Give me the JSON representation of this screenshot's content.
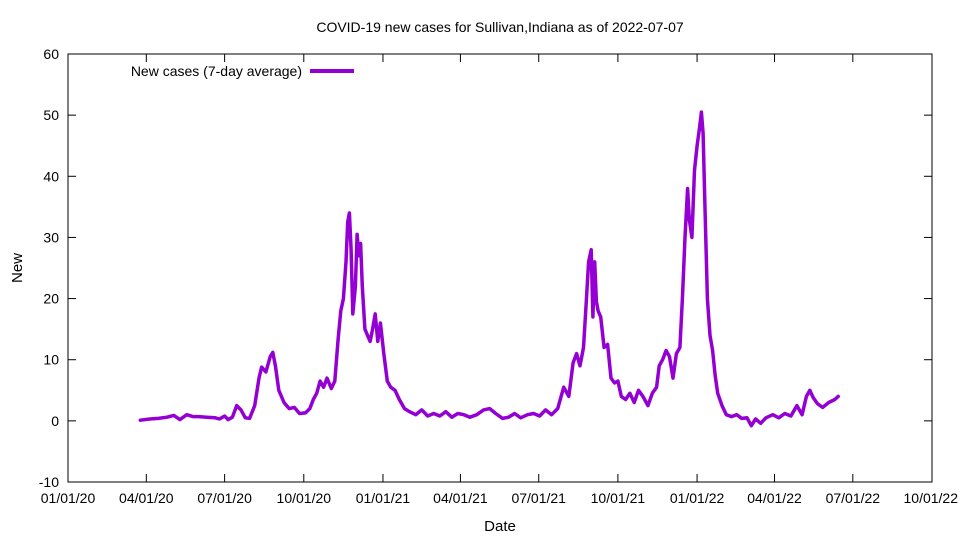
{
  "chart_data": {
    "type": "line",
    "title": "COVID-19 new cases for Sullivan,Indiana as of 2022-07-07",
    "xlabel": "Date",
    "ylabel": "New",
    "ylim": [
      -10,
      60
    ],
    "xlim": [
      "2020-01-01",
      "2022-10-01"
    ],
    "y_ticks": [
      -10,
      0,
      10,
      20,
      30,
      40,
      50,
      60
    ],
    "x_ticks": [
      {
        "date": "2020-01-01",
        "label": "01/01/20"
      },
      {
        "date": "2020-04-01",
        "label": "04/01/20"
      },
      {
        "date": "2020-07-01",
        "label": "07/01/20"
      },
      {
        "date": "2020-10-01",
        "label": "10/01/20"
      },
      {
        "date": "2021-01-01",
        "label": "01/01/21"
      },
      {
        "date": "2021-04-01",
        "label": "04/01/21"
      },
      {
        "date": "2021-07-01",
        "label": "07/01/21"
      },
      {
        "date": "2021-10-01",
        "label": "10/01/21"
      },
      {
        "date": "2022-01-01",
        "label": "01/01/22"
      },
      {
        "date": "2022-04-01",
        "label": "04/01/22"
      },
      {
        "date": "2022-07-01",
        "label": "07/01/22"
      },
      {
        "date": "2022-10-01",
        "label": "10/01/22"
      }
    ],
    "legend_position": "top-left",
    "grid": false,
    "series": [
      {
        "name": "New cases (7-day average)",
        "color": "#9400d3",
        "points": [
          [
            "2020-03-25",
            0.1
          ],
          [
            "2020-04-05",
            0.3
          ],
          [
            "2020-04-15",
            0.4
          ],
          [
            "2020-04-25",
            0.6
          ],
          [
            "2020-05-03",
            0.9
          ],
          [
            "2020-05-10",
            0.2
          ],
          [
            "2020-05-18",
            1.0
          ],
          [
            "2020-05-25",
            0.7
          ],
          [
            "2020-06-01",
            0.7
          ],
          [
            "2020-06-10",
            0.6
          ],
          [
            "2020-06-20",
            0.5
          ],
          [
            "2020-06-25",
            0.3
          ],
          [
            "2020-07-01",
            0.8
          ],
          [
            "2020-07-05",
            0.2
          ],
          [
            "2020-07-10",
            0.6
          ],
          [
            "2020-07-15",
            2.5
          ],
          [
            "2020-07-20",
            1.8
          ],
          [
            "2020-07-25",
            0.5
          ],
          [
            "2020-07-30",
            0.4
          ],
          [
            "2020-08-05",
            2.5
          ],
          [
            "2020-08-10",
            7.0
          ],
          [
            "2020-08-13",
            8.8
          ],
          [
            "2020-08-18",
            8.0
          ],
          [
            "2020-08-23",
            10.5
          ],
          [
            "2020-08-26",
            11.2
          ],
          [
            "2020-08-29",
            9.0
          ],
          [
            "2020-09-02",
            5.0
          ],
          [
            "2020-09-08",
            3.0
          ],
          [
            "2020-09-14",
            2.0
          ],
          [
            "2020-09-20",
            2.2
          ],
          [
            "2020-09-26",
            1.2
          ],
          [
            "2020-10-03",
            1.3
          ],
          [
            "2020-10-08",
            2.0
          ],
          [
            "2020-10-12",
            3.5
          ],
          [
            "2020-10-16",
            4.5
          ],
          [
            "2020-10-20",
            6.5
          ],
          [
            "2020-10-24",
            5.5
          ],
          [
            "2020-10-28",
            7.0
          ],
          [
            "2020-11-02",
            5.3
          ],
          [
            "2020-11-06",
            6.5
          ],
          [
            "2020-11-10",
            13.5
          ],
          [
            "2020-11-13",
            18.0
          ],
          [
            "2020-11-16",
            20.0
          ],
          [
            "2020-11-19",
            26.0
          ],
          [
            "2020-11-21",
            32.5
          ],
          [
            "2020-11-23",
            34.0
          ],
          [
            "2020-11-25",
            28.0
          ],
          [
            "2020-11-27",
            17.5
          ],
          [
            "2020-11-30",
            22.0
          ],
          [
            "2020-12-02",
            30.5
          ],
          [
            "2020-12-04",
            27.0
          ],
          [
            "2020-12-06",
            29.0
          ],
          [
            "2020-12-08",
            22.0
          ],
          [
            "2020-12-11",
            15.0
          ],
          [
            "2020-12-14",
            14.0
          ],
          [
            "2020-12-17",
            13.0
          ],
          [
            "2020-12-20",
            15.0
          ],
          [
            "2020-12-23",
            17.5
          ],
          [
            "2020-12-26",
            13.0
          ],
          [
            "2020-12-29",
            16.0
          ],
          [
            "2021-01-02",
            11.0
          ],
          [
            "2021-01-06",
            6.5
          ],
          [
            "2021-01-10",
            5.5
          ],
          [
            "2021-01-15",
            5.0
          ],
          [
            "2021-01-20",
            3.5
          ],
          [
            "2021-01-26",
            2.0
          ],
          [
            "2021-02-01",
            1.5
          ],
          [
            "2021-02-08",
            1.0
          ],
          [
            "2021-02-15",
            1.8
          ],
          [
            "2021-02-22",
            0.8
          ],
          [
            "2021-03-01",
            1.2
          ],
          [
            "2021-03-08",
            0.8
          ],
          [
            "2021-03-15",
            1.5
          ],
          [
            "2021-03-22",
            0.6
          ],
          [
            "2021-03-29",
            1.2
          ],
          [
            "2021-04-05",
            1.0
          ],
          [
            "2021-04-12",
            0.6
          ],
          [
            "2021-04-20",
            1.0
          ],
          [
            "2021-04-28",
            1.8
          ],
          [
            "2021-05-05",
            2.0
          ],
          [
            "2021-05-12",
            1.2
          ],
          [
            "2021-05-20",
            0.4
          ],
          [
            "2021-05-27",
            0.6
          ],
          [
            "2021-06-03",
            1.2
          ],
          [
            "2021-06-10",
            0.5
          ],
          [
            "2021-06-18",
            1.0
          ],
          [
            "2021-06-25",
            1.2
          ],
          [
            "2021-07-02",
            0.8
          ],
          [
            "2021-07-09",
            1.8
          ],
          [
            "2021-07-16",
            1.0
          ],
          [
            "2021-07-23",
            2.0
          ],
          [
            "2021-07-30",
            5.5
          ],
          [
            "2021-08-05",
            4.0
          ],
          [
            "2021-08-10",
            9.5
          ],
          [
            "2021-08-14",
            11.0
          ],
          [
            "2021-08-18",
            9.0
          ],
          [
            "2021-08-22",
            12.0
          ],
          [
            "2021-08-25",
            19.0
          ],
          [
            "2021-08-28",
            26.0
          ],
          [
            "2021-08-31",
            28.0
          ],
          [
            "2021-09-02",
            17.0
          ],
          [
            "2021-09-04",
            26.0
          ],
          [
            "2021-09-06",
            19.5
          ],
          [
            "2021-09-08",
            18.0
          ],
          [
            "2021-09-11",
            17.0
          ],
          [
            "2021-09-15",
            12.0
          ],
          [
            "2021-09-19",
            12.5
          ],
          [
            "2021-09-23",
            7.0
          ],
          [
            "2021-09-27",
            6.2
          ],
          [
            "2021-10-01",
            6.5
          ],
          [
            "2021-10-05",
            4.0
          ],
          [
            "2021-10-10",
            3.5
          ],
          [
            "2021-10-15",
            4.5
          ],
          [
            "2021-10-20",
            3.0
          ],
          [
            "2021-10-25",
            5.0
          ],
          [
            "2021-10-30",
            4.0
          ],
          [
            "2021-11-05",
            2.5
          ],
          [
            "2021-11-10",
            4.5
          ],
          [
            "2021-11-15",
            5.5
          ],
          [
            "2021-11-18",
            9.0
          ],
          [
            "2021-11-22",
            10.0
          ],
          [
            "2021-11-26",
            11.5
          ],
          [
            "2021-11-30",
            10.5
          ],
          [
            "2021-12-04",
            7.0
          ],
          [
            "2021-12-08",
            11.0
          ],
          [
            "2021-12-12",
            12.0
          ],
          [
            "2021-12-15",
            20.0
          ],
          [
            "2021-12-18",
            30.0
          ],
          [
            "2021-12-21",
            38.0
          ],
          [
            "2021-12-23",
            33.0
          ],
          [
            "2021-12-26",
            30.0
          ],
          [
            "2021-12-29",
            41.0
          ],
          [
            "2022-01-01",
            45.0
          ],
          [
            "2022-01-04",
            48.0
          ],
          [
            "2022-01-06",
            50.5
          ],
          [
            "2022-01-08",
            47.0
          ],
          [
            "2022-01-10",
            36.0
          ],
          [
            "2022-01-13",
            20.0
          ],
          [
            "2022-01-16",
            14.0
          ],
          [
            "2022-01-19",
            11.5
          ],
          [
            "2022-01-22",
            7.5
          ],
          [
            "2022-01-25",
            4.5
          ],
          [
            "2022-01-30",
            2.5
          ],
          [
            "2022-02-04",
            1.0
          ],
          [
            "2022-02-10",
            0.7
          ],
          [
            "2022-02-16",
            1.0
          ],
          [
            "2022-02-22",
            0.4
          ],
          [
            "2022-02-28",
            0.5
          ],
          [
            "2022-03-05",
            -0.8
          ],
          [
            "2022-03-10",
            0.3
          ],
          [
            "2022-03-16",
            -0.4
          ],
          [
            "2022-03-22",
            0.5
          ],
          [
            "2022-03-30",
            1.0
          ],
          [
            "2022-04-06",
            0.5
          ],
          [
            "2022-04-13",
            1.2
          ],
          [
            "2022-04-20",
            0.8
          ],
          [
            "2022-04-27",
            2.5
          ],
          [
            "2022-05-03",
            1.0
          ],
          [
            "2022-05-08",
            4.0
          ],
          [
            "2022-05-12",
            5.0
          ],
          [
            "2022-05-16",
            3.8
          ],
          [
            "2022-05-21",
            2.8
          ],
          [
            "2022-05-27",
            2.2
          ],
          [
            "2022-06-03",
            3.0
          ],
          [
            "2022-06-10",
            3.5
          ],
          [
            "2022-06-14",
            4.0
          ]
        ]
      }
    ]
  }
}
